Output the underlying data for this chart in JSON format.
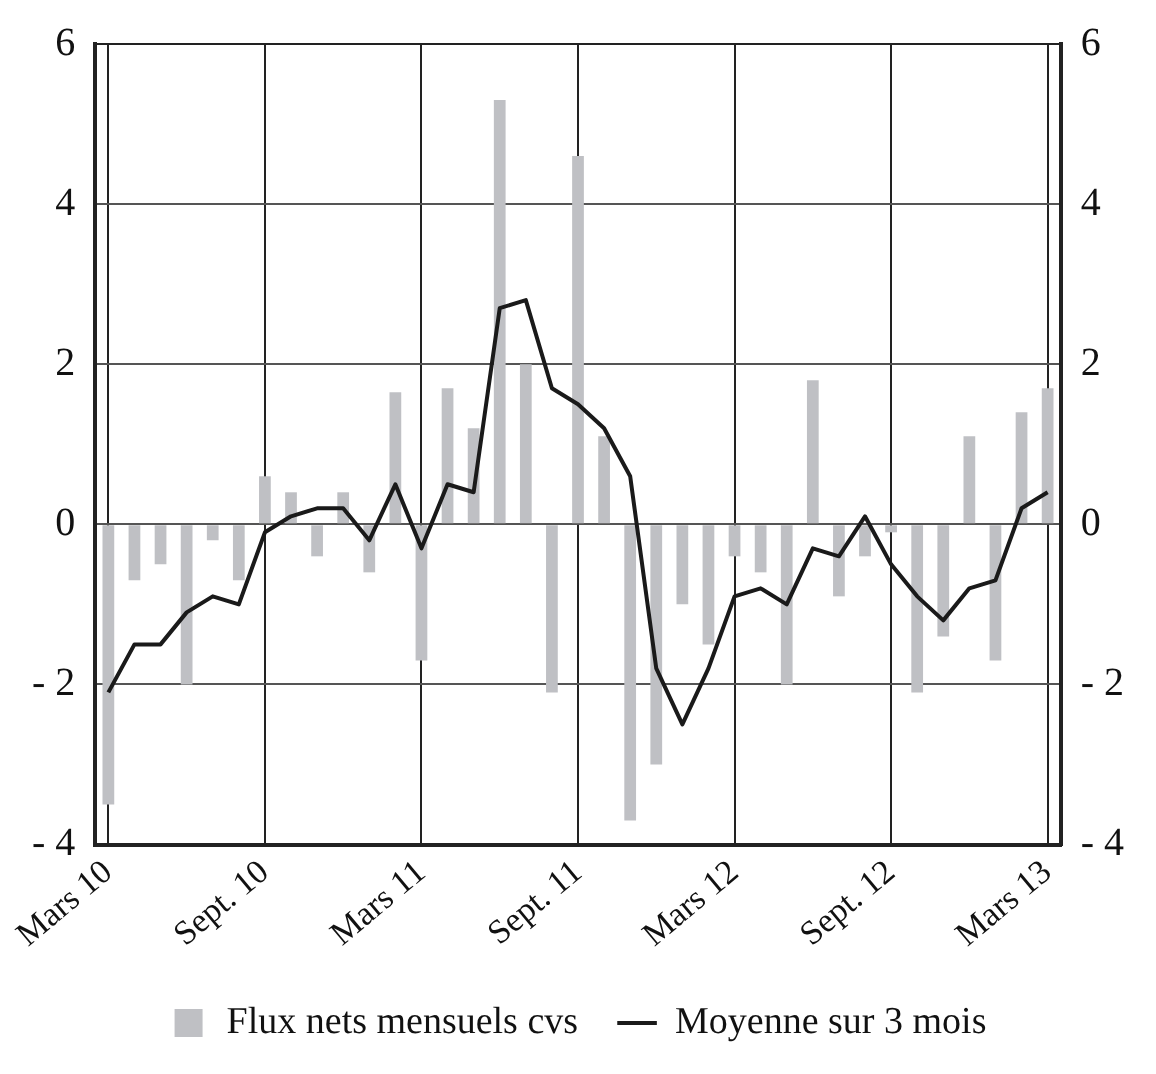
{
  "chart_data": {
    "type": "bar",
    "categories": [
      "Mars 10",
      null,
      null,
      null,
      null,
      null,
      "Sept. 10",
      null,
      null,
      null,
      null,
      null,
      "Mars 11",
      null,
      null,
      null,
      null,
      null,
      "Sept. 11",
      null,
      null,
      null,
      null,
      null,
      "Mars 12",
      null,
      null,
      null,
      null,
      null,
      "Sept. 12",
      null,
      null,
      null,
      null,
      null,
      "Mars 13"
    ],
    "series": [
      {
        "name": "Flux nets mensuels cvs",
        "color": "#bfc0c4",
        "values": [
          -3.5,
          -0.7,
          -0.5,
          -2.0,
          -0.2,
          -0.7,
          0.6,
          0.4,
          -0.4,
          0.4,
          -0.6,
          1.65,
          -1.7,
          1.7,
          1.2,
          5.3,
          2.0,
          -2.1,
          4.6,
          1.1,
          -3.7,
          -3.0,
          -1.0,
          -1.5,
          -0.4,
          -0.6,
          -2.0,
          1.8,
          -0.9,
          -0.4,
          -0.1,
          -2.1,
          -1.4,
          1.1,
          -1.7,
          1.4,
          1.7
        ]
      },
      {
        "name": "Moyenne sur 3 mois",
        "type": "line",
        "color": "#1a1a1a",
        "values": [
          -2.1,
          -1.5,
          -1.5,
          -1.1,
          -0.9,
          -1.0,
          -0.1,
          0.1,
          0.2,
          0.2,
          -0.2,
          0.5,
          -0.3,
          0.5,
          0.4,
          2.7,
          2.8,
          1.7,
          1.5,
          1.2,
          0.6,
          -1.8,
          -2.5,
          -1.8,
          -0.9,
          -0.8,
          -1.0,
          -0.3,
          -0.4,
          0.1,
          -0.5,
          -0.9,
          -1.2,
          -0.8,
          -0.7,
          0.2,
          0.4
        ]
      }
    ],
    "ylim": [
      -4,
      6
    ],
    "yticks": [
      {
        "value": -4,
        "label": "- 4"
      },
      {
        "value": -2,
        "label": "- 2"
      },
      0,
      2,
      4,
      6
    ],
    "y2lim": [
      -4,
      6
    ],
    "y2ticks": [
      {
        "value": -4,
        "label": "- 4"
      },
      {
        "value": -2,
        "label": "- 2"
      },
      0,
      2,
      4,
      6
    ],
    "grid": true,
    "legend": "bottom",
    "marker": "none",
    "line_style": "solid"
  }
}
